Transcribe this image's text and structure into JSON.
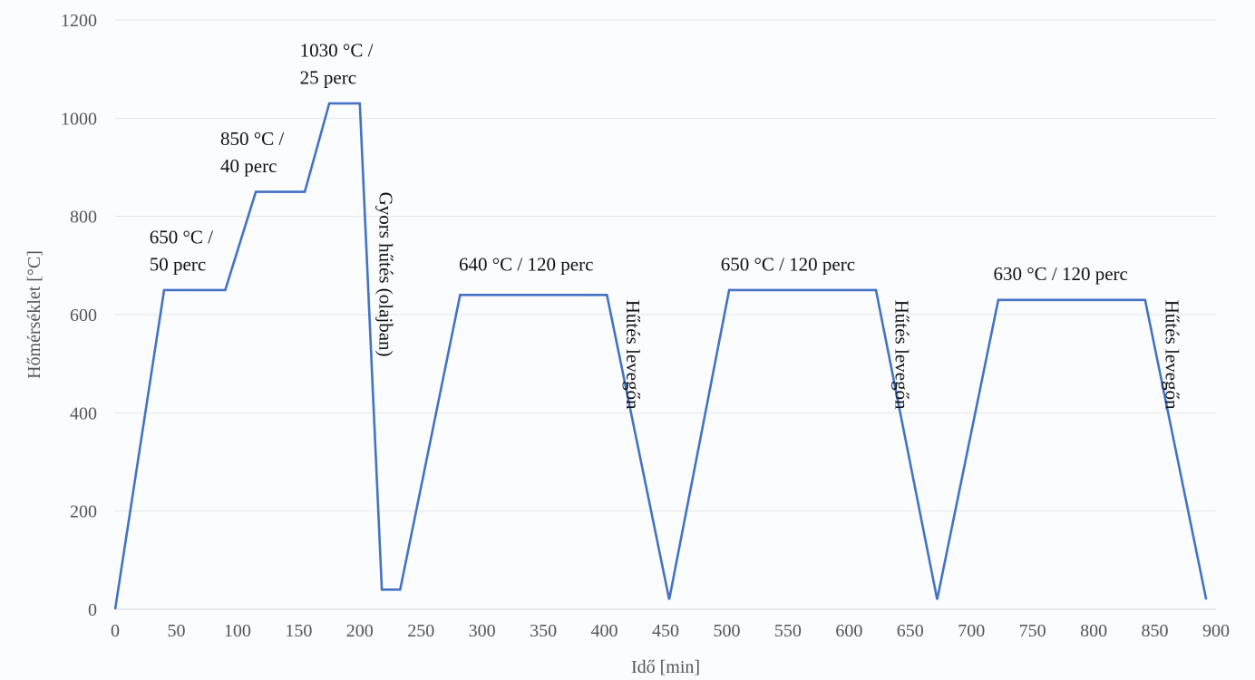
{
  "chart_data": {
    "type": "line",
    "xlabel": "Idő [min]",
    "ylabel": "Hőmérséklet [°C]",
    "xlim": [
      0,
      900
    ],
    "ylim": [
      0,
      1200
    ],
    "xticks": [
      0,
      50,
      100,
      150,
      200,
      250,
      300,
      350,
      400,
      450,
      500,
      550,
      600,
      650,
      700,
      750,
      800,
      850,
      900
    ],
    "yticks": [
      0,
      200,
      400,
      600,
      800,
      1000,
      1200
    ],
    "grid": "horizontal",
    "series": [
      {
        "color": "#4472c4",
        "points": [
          [
            0,
            0
          ],
          [
            40,
            650
          ],
          [
            90,
            650
          ],
          [
            115,
            850
          ],
          [
            155,
            850
          ],
          [
            175,
            1030
          ],
          [
            200,
            1030
          ],
          [
            218,
            40
          ],
          [
            233,
            40
          ],
          [
            282,
            640
          ],
          [
            402,
            640
          ],
          [
            453,
            20
          ],
          [
            502,
            650
          ],
          [
            622,
            650
          ],
          [
            672,
            20
          ],
          [
            722,
            630
          ],
          [
            842,
            630
          ],
          [
            892,
            20
          ]
        ]
      }
    ],
    "annotations": [
      {
        "lines": [
          "650 °C /",
          "50 perc"
        ],
        "x": 28,
        "y": 745,
        "rotate": 0
      },
      {
        "lines": [
          "850 °C /",
          "40 perc"
        ],
        "x": 86,
        "y": 945,
        "rotate": 0
      },
      {
        "lines": [
          "1030 °C /",
          "25 perc"
        ],
        "x": 151,
        "y": 1125,
        "rotate": 0
      },
      {
        "lines": [
          "Gyors hűtés (olajban)"
        ],
        "x": 216,
        "y": 850,
        "rotate": 90
      },
      {
        "lines": [
          "640 °C / 120 perc"
        ],
        "x": 281,
        "y": 690,
        "rotate": 0
      },
      {
        "lines": [
          "Hűtés levegőn"
        ],
        "x": 418,
        "y": 630,
        "rotate": 90
      },
      {
        "lines": [
          "650 °C / 120 perc"
        ],
        "x": 495,
        "y": 690,
        "rotate": 0
      },
      {
        "lines": [
          "Hűtés levegőn"
        ],
        "x": 638,
        "y": 630,
        "rotate": 90
      },
      {
        "lines": [
          "630 °C / 120 perc"
        ],
        "x": 718,
        "y": 670,
        "rotate": 0
      },
      {
        "lines": [
          "Hűtés levegőn"
        ],
        "x": 859,
        "y": 630,
        "rotate": 90
      }
    ]
  }
}
